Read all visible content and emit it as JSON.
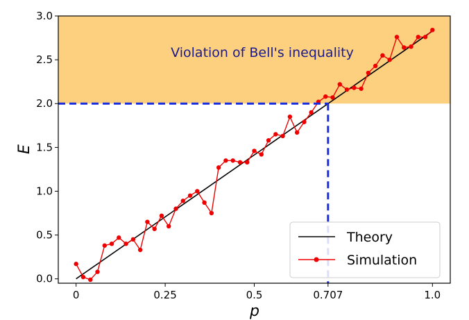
{
  "chart_data": {
    "type": "line",
    "xlabel": "p",
    "ylabel": "E",
    "xlim": [
      -0.05,
      1.05
    ],
    "ylim": [
      -0.05,
      3.0
    ],
    "xticks": [
      0,
      0.25,
      0.5,
      0.707,
      1.0
    ],
    "xtick_labels": [
      "0",
      "0.25",
      "0.5",
      "0.707",
      "1.0"
    ],
    "yticks": [
      0.0,
      0.5,
      1.0,
      1.5,
      2.0,
      2.5,
      3.0
    ],
    "ytick_labels": [
      "0.0",
      "0.5",
      "1.0",
      "1.5",
      "2.0",
      "2.5",
      "3.0"
    ],
    "violation_region": {
      "y_from": 2.0,
      "y_to": 3.0,
      "label": "Violation of Bell's inequality",
      "color": "#fdd080"
    },
    "threshold": {
      "x": 0.707,
      "y": 2.0,
      "color": "#1a2be0"
    },
    "series": [
      {
        "name": "Theory",
        "color": "#000000",
        "x": [
          0,
          1.0
        ],
        "y": [
          0,
          2.828
        ]
      },
      {
        "name": "Simulation",
        "color": "#ee0000",
        "x": [
          0.0,
          0.02,
          0.04,
          0.06,
          0.08,
          0.1,
          0.12,
          0.14,
          0.16,
          0.18,
          0.2,
          0.22,
          0.24,
          0.26,
          0.28,
          0.3,
          0.32,
          0.34,
          0.36,
          0.38,
          0.4,
          0.42,
          0.44,
          0.46,
          0.48,
          0.5,
          0.52,
          0.54,
          0.56,
          0.58,
          0.6,
          0.62,
          0.64,
          0.66,
          0.68,
          0.7,
          0.72,
          0.74,
          0.76,
          0.78,
          0.8,
          0.82,
          0.84,
          0.86,
          0.88,
          0.9,
          0.92,
          0.94,
          0.96,
          0.98,
          1.0
        ],
        "y": [
          0.17,
          0.02,
          -0.01,
          0.08,
          0.38,
          0.4,
          0.47,
          0.4,
          0.45,
          0.33,
          0.65,
          0.57,
          0.72,
          0.6,
          0.8,
          0.89,
          0.95,
          1.0,
          0.87,
          0.75,
          1.27,
          1.35,
          1.35,
          1.33,
          1.33,
          1.46,
          1.42,
          1.58,
          1.65,
          1.63,
          1.85,
          1.67,
          1.79,
          1.9,
          2.02,
          2.08,
          2.07,
          2.22,
          2.16,
          2.18,
          2.17,
          2.35,
          2.43,
          2.55,
          2.5,
          2.76,
          2.64,
          2.65,
          2.76,
          2.76,
          2.84
        ]
      }
    ]
  }
}
